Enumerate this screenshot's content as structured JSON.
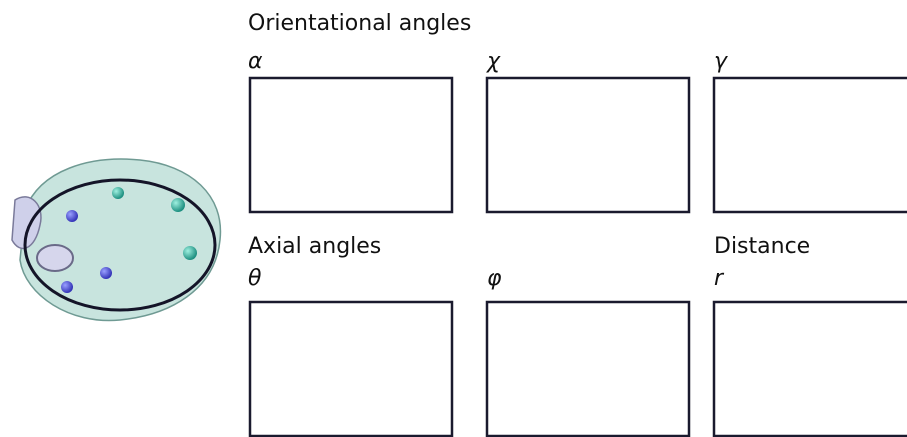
{
  "orientational": {
    "title": "Orientational angles",
    "angles": [
      "α",
      "χ",
      "γ"
    ]
  },
  "axial": {
    "title": "Axial angles",
    "angles": [
      "θ",
      "φ"
    ]
  },
  "distance": {
    "title": "Distance",
    "symbol": "r"
  }
}
